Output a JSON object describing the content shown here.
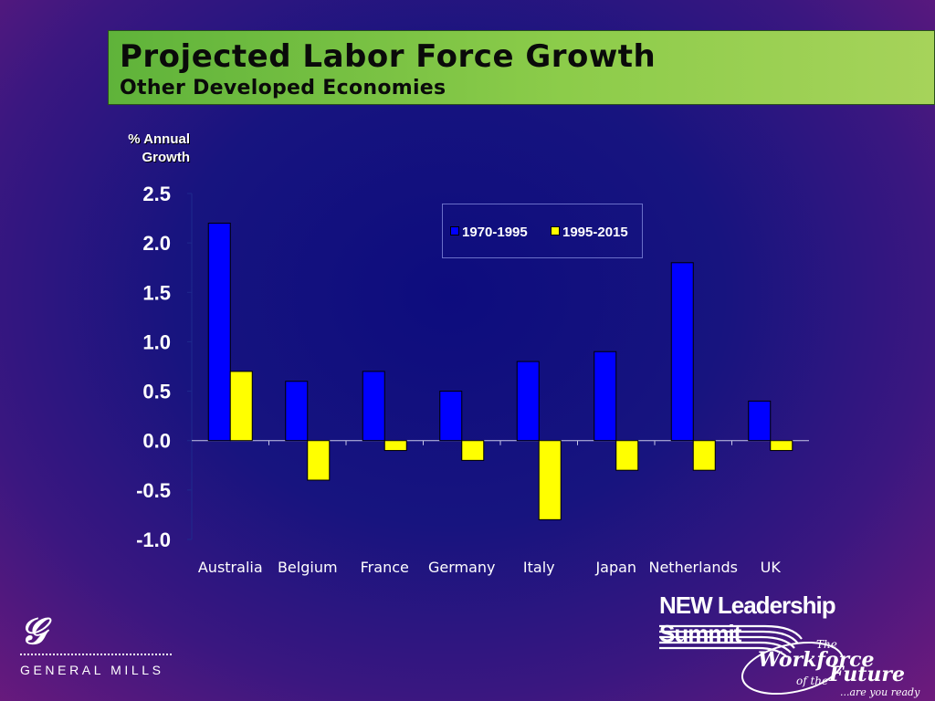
{
  "title": "Projected Labor Force Growth",
  "subtitle": "Other Developed Economies",
  "ylabel_lines": [
    "% Annual",
    "Growth"
  ],
  "chart_data": {
    "type": "bar",
    "categories": [
      "Australia",
      "Belgium",
      "France",
      "Germany",
      "Italy",
      "Japan",
      "Netherlands",
      "UK"
    ],
    "series": [
      {
        "name": "1970-1995",
        "color": "#0000ff",
        "values": [
          2.2,
          0.6,
          0.7,
          0.5,
          0.8,
          0.9,
          1.8,
          0.4
        ]
      },
      {
        "name": "1995-2015",
        "color": "#ffff00",
        "values": [
          0.7,
          -0.4,
          -0.1,
          -0.2,
          -0.8,
          -0.3,
          -0.3,
          -0.1
        ]
      }
    ],
    "ylim": [
      -1.0,
      2.5
    ],
    "yticks": [
      2.5,
      2.0,
      1.5,
      1.0,
      0.5,
      0.0,
      -0.5,
      -1.0
    ],
    "ytick_labels": [
      "2.5",
      "2.0",
      "1.5",
      "1.0",
      "0.5",
      "0.0",
      "-0.5",
      "-1.0"
    ],
    "legend": "top-center",
    "grid": false
  },
  "branding": {
    "left_logo_text": "GENERAL MILLS",
    "summit_title": "NEW Leadership Summit",
    "tagline_the": "The",
    "tagline_workforce": "Workforce",
    "tagline_of_the": "of the",
    "tagline_future": "Future",
    "tagline_ready": "...are you ready?"
  },
  "colors": {
    "title_bar": "#8ccc4a",
    "series_1": "#0000ff",
    "series_2": "#ffff00"
  }
}
